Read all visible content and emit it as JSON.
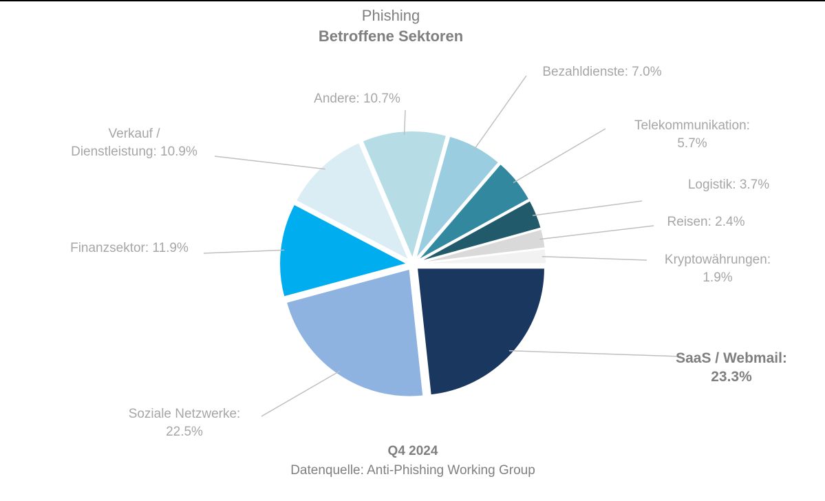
{
  "title": {
    "line1": "Phishing",
    "line2": "Betroffene Sektoren"
  },
  "footer": {
    "period": "Q4 2024",
    "source": "Datenquelle: Anti-Phishing Working Group"
  },
  "chart_data": {
    "type": "pie",
    "title": "Phishing – Betroffene Sektoren",
    "unit": "%",
    "slices": [
      {
        "label": "SaaS / Webmail",
        "value": 23.3,
        "color": "#1a3760",
        "label_lines": [
          "SaaS / Webmail:",
          "23.3%"
        ],
        "highlight": true
      },
      {
        "label": "Soziale Netzwerke",
        "value": 22.5,
        "color": "#8eb3e1",
        "label_lines": [
          "Soziale Netzwerke:",
          "22.5%"
        ]
      },
      {
        "label": "Finanzsektor",
        "value": 11.9,
        "color": "#00aeef",
        "label_lines": [
          "Finanzsektor: 11.9%"
        ]
      },
      {
        "label": "Verkauf / Dienstleistung",
        "value": 10.9,
        "color": "#daedf4",
        "label_lines": [
          "Verkauf /",
          "Dienstleistung: 10.9%"
        ]
      },
      {
        "label": "Andere",
        "value": 10.7,
        "color": "#b6dce6",
        "label_lines": [
          "Andere: 10.7%"
        ]
      },
      {
        "label": "Bezahldienste",
        "value": 7.0,
        "color": "#99cddf",
        "label_lines": [
          "Bezahldienste: 7.0%"
        ]
      },
      {
        "label": "Telekommunikation",
        "value": 5.7,
        "color": "#32889f",
        "label_lines": [
          "Telekommunikation:",
          "5.7%"
        ]
      },
      {
        "label": "Logistik",
        "value": 3.7,
        "color": "#215a6a",
        "label_lines": [
          "Logistik: 3.7%"
        ]
      },
      {
        "label": "Reisen",
        "value": 2.4,
        "color": "#d9d9d9",
        "label_lines": [
          "Reisen: 2.4%"
        ]
      },
      {
        "label": "Kryptowährungen",
        "value": 1.9,
        "color": "#f2f2f2",
        "label_lines": [
          "Kryptowährungen:",
          "1.9%"
        ]
      }
    ]
  }
}
